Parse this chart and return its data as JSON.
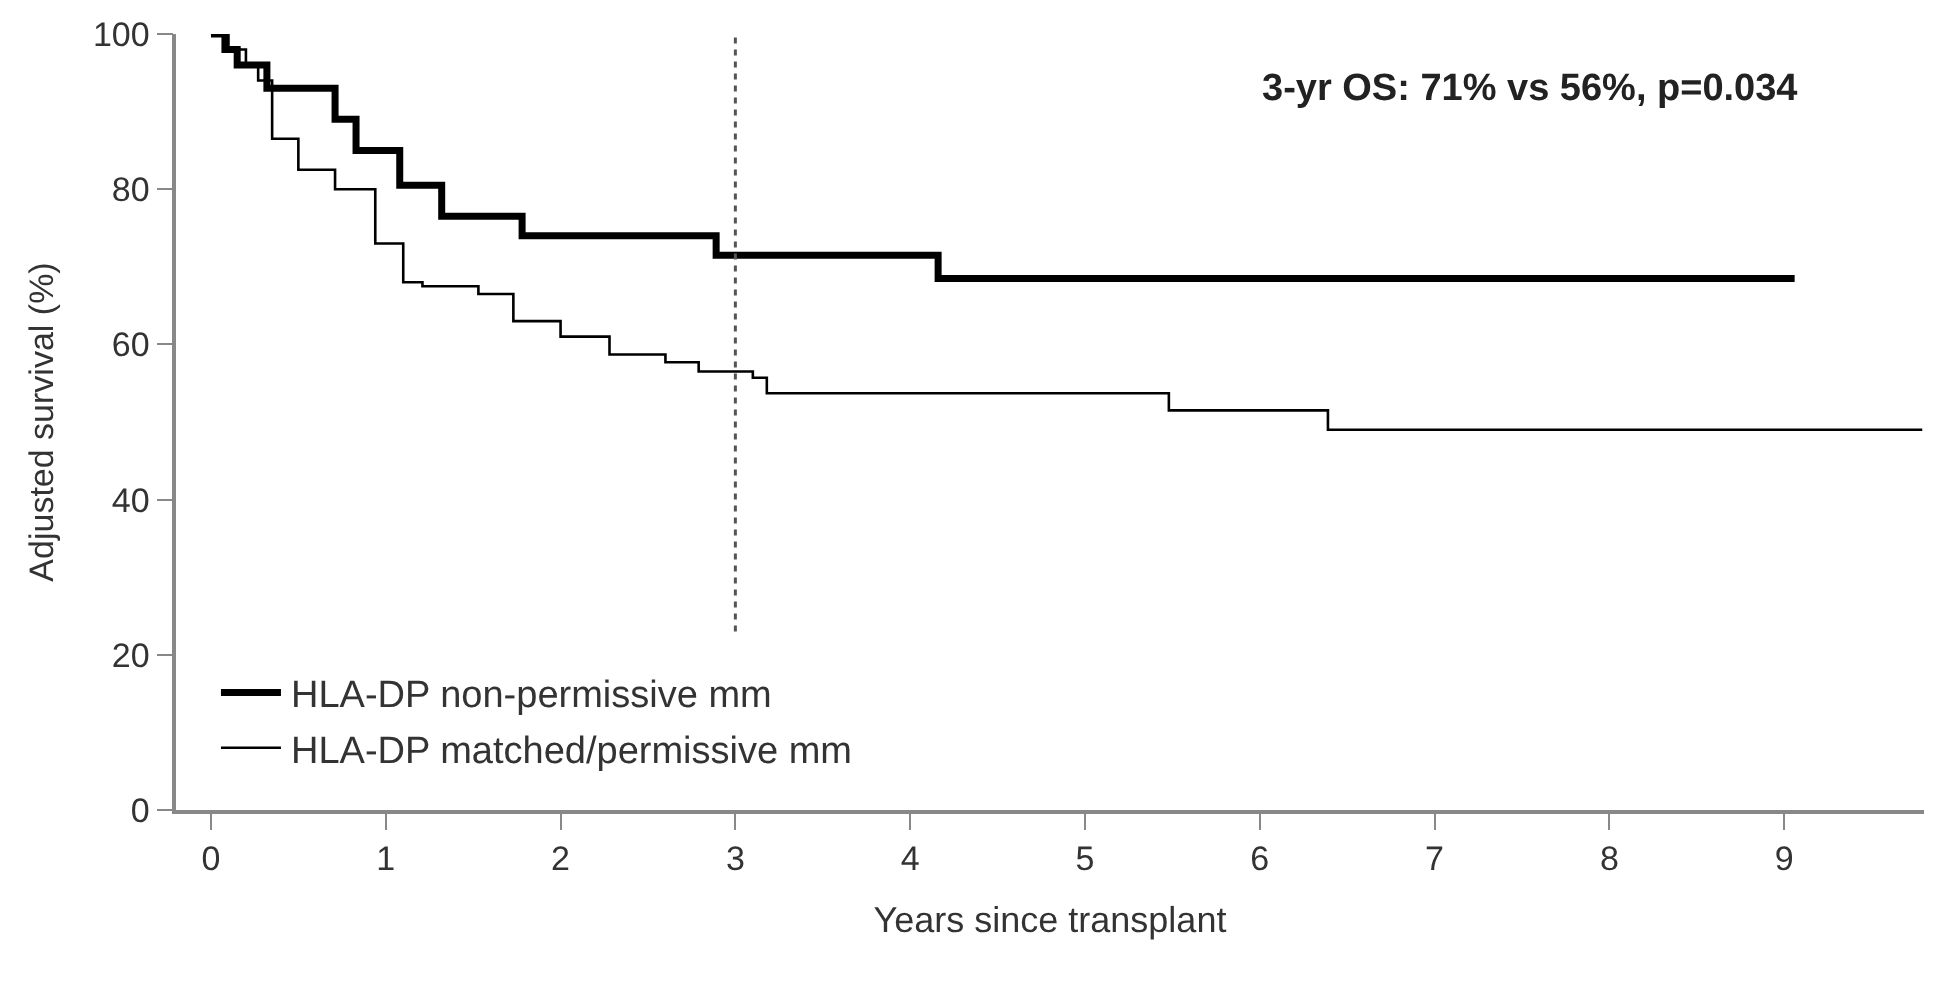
{
  "chart_data": {
    "type": "step",
    "xlabel": "Years since transplant",
    "ylabel": "Adjusted survival (%)",
    "annotations": [
      "3-yr OS: 71% vs 56%, p=0.034"
    ],
    "xlim": [
      -0.2,
      9.8
    ],
    "xticks": [
      0,
      1,
      2,
      3,
      4,
      5,
      6,
      7,
      8,
      9
    ],
    "ylim": [
      0,
      100
    ],
    "yticks": [
      0,
      20,
      40,
      60,
      80,
      100
    ],
    "legend": "bottom left",
    "marker": "none",
    "line_style": "solid",
    "ref_lines": [
      {
        "axis": "x",
        "value": 3,
        "line_style": "dotted",
        "color": "#555555"
      }
    ],
    "series": [
      {
        "name": "HLA-DP non-permissive mm",
        "color": "#000000",
        "x": [
          0,
          0.08,
          0.15,
          0.32,
          0.71,
          0.83,
          1.08,
          1.32,
          1.78,
          2.89,
          4.16,
          9.06
        ],
        "values": [
          100,
          98,
          96,
          93,
          89,
          85,
          80.5,
          76.5,
          74,
          71.5,
          68.5,
          68.5
        ]
      },
      {
        "name": "HLA-DP matched/permissive mm",
        "color": "#000000",
        "x": [
          0,
          0.1,
          0.2,
          0.27,
          0.35,
          0.5,
          0.71,
          0.94,
          1.1,
          1.21,
          1.53,
          1.73,
          2.0,
          2.28,
          2.6,
          2.79,
          3.1,
          3.18,
          5.48,
          6.39,
          9.79
        ],
        "values": [
          100,
          98,
          96,
          94,
          86.5,
          82.5,
          80,
          73,
          68,
          67.5,
          66.5,
          63,
          61,
          58.7,
          57.7,
          56.5,
          55.7,
          53.7,
          51.5,
          49,
          49
        ]
      }
    ]
  }
}
